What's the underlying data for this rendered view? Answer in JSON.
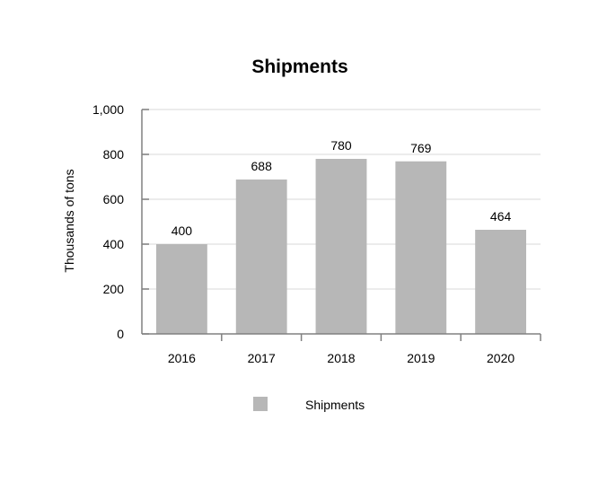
{
  "chart_data": {
    "type": "bar",
    "title": "Shipments",
    "xlabel": "",
    "ylabel": "Thousands of tons",
    "categories": [
      "2016",
      "2017",
      "2018",
      "2019",
      "2020"
    ],
    "series": [
      {
        "name": "Shipments",
        "values": [
          400,
          688,
          780,
          769,
          464
        ]
      }
    ],
    "ylim": [
      0,
      1000
    ],
    "yticks": [
      0,
      200,
      400,
      600,
      800,
      1000
    ],
    "ytick_labels": [
      "0",
      "200",
      "400",
      "600",
      "800",
      "1,000"
    ],
    "data_labels": [
      "400",
      "688",
      "780",
      "769",
      "464"
    ],
    "grid": true,
    "legend_position": "bottom",
    "colors": {
      "bar": "#b7b7b7",
      "grid": "#e6e6e6",
      "axis": "#808080"
    }
  }
}
